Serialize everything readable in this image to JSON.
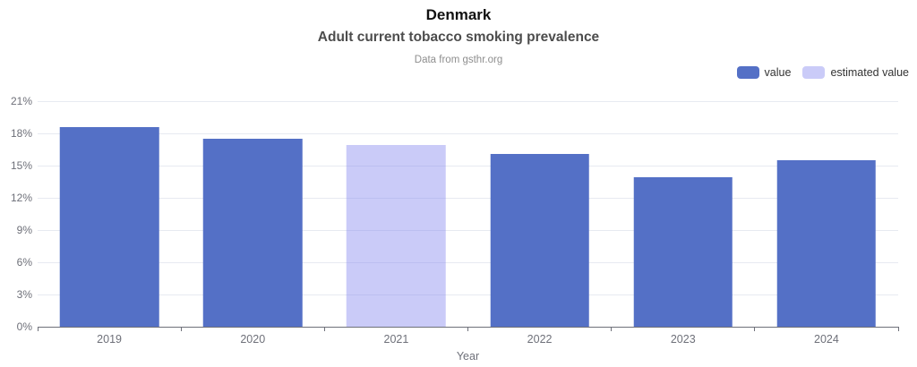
{
  "header": {
    "title": "Denmark",
    "subtitle": "Adult current tobacco smoking prevalence",
    "credit": "Data from gsthr.org"
  },
  "legend": {
    "position": "top-right",
    "items": [
      {
        "label": "value",
        "color": "#5470C6"
      },
      {
        "label": "estimated value",
        "color": "#CACBF8",
        "fill": "rgba(129,131,238,0.42)"
      }
    ]
  },
  "chart_data": {
    "type": "bar",
    "title": "Denmark",
    "subtitle": "Adult current tobacco smoking prevalence",
    "source_note": "Data from gsthr.org",
    "categories": [
      "2019",
      "2020",
      "2021",
      "2022",
      "2023",
      "2024"
    ],
    "values": [
      18.6,
      17.5,
      16.9,
      16.1,
      13.9,
      15.5
    ],
    "estimated": [
      false,
      false,
      true,
      false,
      false,
      false
    ],
    "series": [
      {
        "name": "value",
        "values": [
          18.6,
          17.5,
          null,
          16.1,
          13.9,
          15.5
        ]
      },
      {
        "name": "estimated value",
        "values": [
          null,
          null,
          16.9,
          null,
          null,
          null
        ]
      }
    ],
    "xlabel": "Year",
    "ylabel": "",
    "ylim": [
      0,
      21
    ],
    "ytick_labels": [
      "0%",
      "3%",
      "6%",
      "9%",
      "12%",
      "15%",
      "18%",
      "21%"
    ],
    "grid": true,
    "legend_position": "top-right",
    "colors": {
      "value": "#5470C6",
      "estimated_visible": "#CACBF8",
      "grid": "#E7EAF1",
      "axis": "#6E7079"
    }
  }
}
